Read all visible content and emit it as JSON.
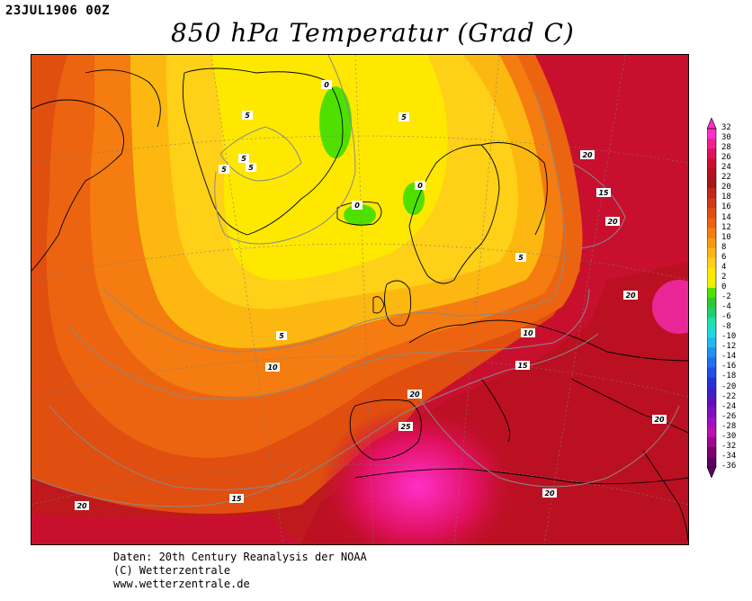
{
  "header": {
    "timestamp": "23JUL1906 00Z",
    "title": "850 hPa Temperatur (Grad C)"
  },
  "legend": {
    "ticks": [
      "32",
      "30",
      "28",
      "26",
      "24",
      "22",
      "20",
      "18",
      "16",
      "14",
      "12",
      "10",
      "8",
      "6",
      "4",
      "2",
      "0",
      "-2",
      "-4",
      "-6",
      "-8",
      "-10",
      "-12",
      "-14",
      "-16",
      "-18",
      "-20",
      "-22",
      "-24",
      "-26",
      "-28",
      "-30",
      "-32",
      "-34",
      "-36"
    ],
    "colors": [
      "#ff30c8",
      "#f02090",
      "#e0105e",
      "#c8102e",
      "#b81020",
      "#a81818",
      "#c02818",
      "#d03a14",
      "#e04e10",
      "#ec6410",
      "#f47c10",
      "#f89a10",
      "#fcb810",
      "#fed018",
      "#ffe800",
      "#f0f000",
      "#50e000",
      "#30c830",
      "#20d070",
      "#20e0b0",
      "#20d8e0",
      "#20b8f0",
      "#2090f0",
      "#2070f0",
      "#2050e8",
      "#2830d8",
      "#4020c8",
      "#6010c0",
      "#8010c0",
      "#a010c0",
      "#c010b0",
      "#a00890",
      "#800070",
      "#600060"
    ]
  },
  "contour_labels": [
    {
      "text": "0"
    },
    {
      "text": "0"
    },
    {
      "text": "0"
    },
    {
      "text": "5"
    },
    {
      "text": "5"
    },
    {
      "text": "5"
    },
    {
      "text": "5"
    },
    {
      "text": "5"
    },
    {
      "text": "5"
    },
    {
      "text": "5"
    },
    {
      "text": "10"
    },
    {
      "text": "10"
    },
    {
      "text": "15"
    },
    {
      "text": "15"
    },
    {
      "text": "15"
    },
    {
      "text": "20"
    },
    {
      "text": "20"
    },
    {
      "text": "20"
    },
    {
      "text": "20"
    },
    {
      "text": "20"
    },
    {
      "text": "20"
    },
    {
      "text": "20"
    },
    {
      "text": "25"
    }
  ],
  "credits": {
    "line1": "Daten: 20th Century Reanalysis der NOAA",
    "line2": "(C) Wetterzentrale",
    "line3": "www.wetterzentrale.de"
  }
}
